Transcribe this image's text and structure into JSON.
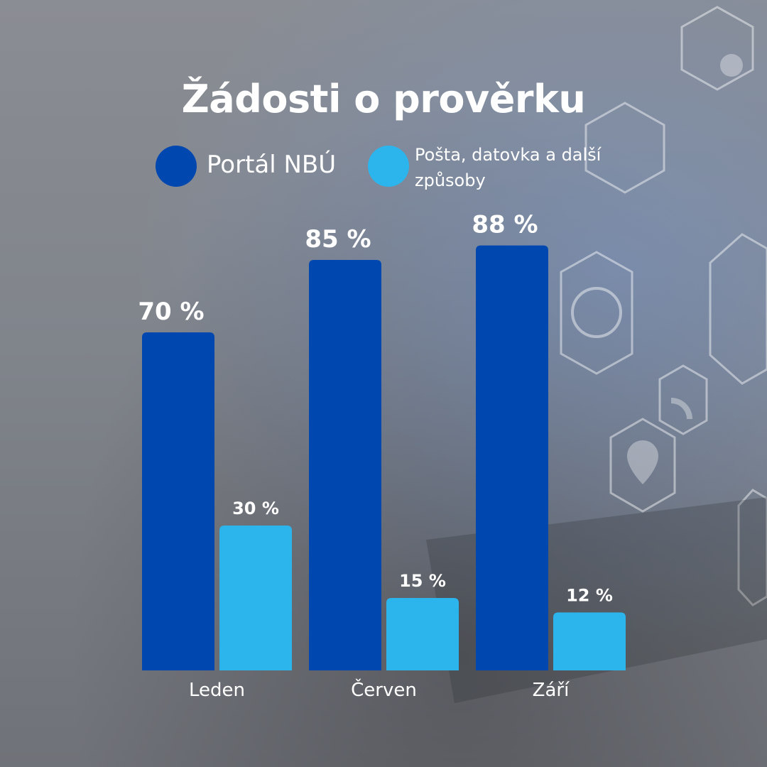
{
  "title": "Žádosti o prověrku",
  "colors": {
    "portal": "#0047b0",
    "other": "#2cb5ec",
    "text": "#ffffff"
  },
  "legend": {
    "items": [
      {
        "label": "Portál NBÚ",
        "color": "#0047b0"
      },
      {
        "label": "Pošta, datovka a další způsoby",
        "color": "#2cb5ec"
      }
    ]
  },
  "chart_data": {
    "type": "bar",
    "title": "Žádosti o prověrku",
    "categories": [
      "Leden",
      "Červen",
      "Září"
    ],
    "series": [
      {
        "name": "Portál NBÚ",
        "values": [
          70,
          85,
          88
        ],
        "labels": [
          "70 %",
          "85 %",
          "88 %"
        ],
        "color": "#0047b0"
      },
      {
        "name": "Pošta, datovka a další způsoby",
        "values": [
          30,
          15,
          12
        ],
        "labels": [
          "30 %",
          "15 %",
          "12 %"
        ],
        "color": "#2cb5ec"
      }
    ],
    "ylim": [
      0,
      100
    ],
    "grid": false,
    "legend_position": "top"
  }
}
